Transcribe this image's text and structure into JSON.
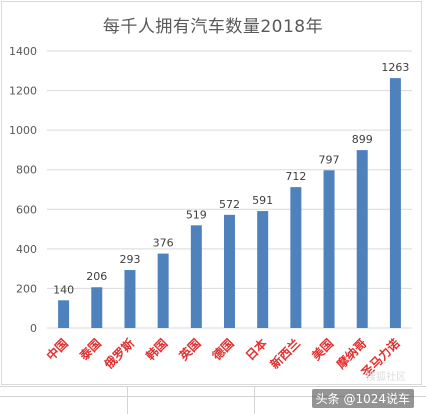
{
  "chart_data": {
    "type": "bar",
    "title": "每千人拥有汽车数量2018年",
    "categories": [
      "中国",
      "泰国",
      "俄罗斯",
      "韩国",
      "英国",
      "德国",
      "日本",
      "新西兰",
      "美国",
      "摩纳哥",
      "圣马力诺"
    ],
    "values": [
      140,
      206,
      293,
      376,
      519,
      572,
      591,
      712,
      797,
      899,
      1263
    ],
    "data_labels": [
      "140",
      "206",
      "293",
      "376",
      "519",
      "572",
      "591",
      "712",
      "797",
      "899",
      "1263"
    ],
    "ylim": [
      0,
      1400
    ],
    "yticks": [
      0,
      200,
      400,
      600,
      800,
      1000,
      1200,
      1400
    ],
    "ytick_labels": [
      "0",
      "200",
      "400",
      "600",
      "800",
      "1000",
      "1200",
      "1400"
    ],
    "grid": true,
    "legend": "none",
    "colors": {
      "bar": "#4f81bd",
      "category_label": "#e03030",
      "grid": "#d9d9d9",
      "axis_text": "#595959"
    }
  },
  "watermark": {
    "text": "头条 @1024说车",
    "faint_text": "搜狐社区"
  }
}
